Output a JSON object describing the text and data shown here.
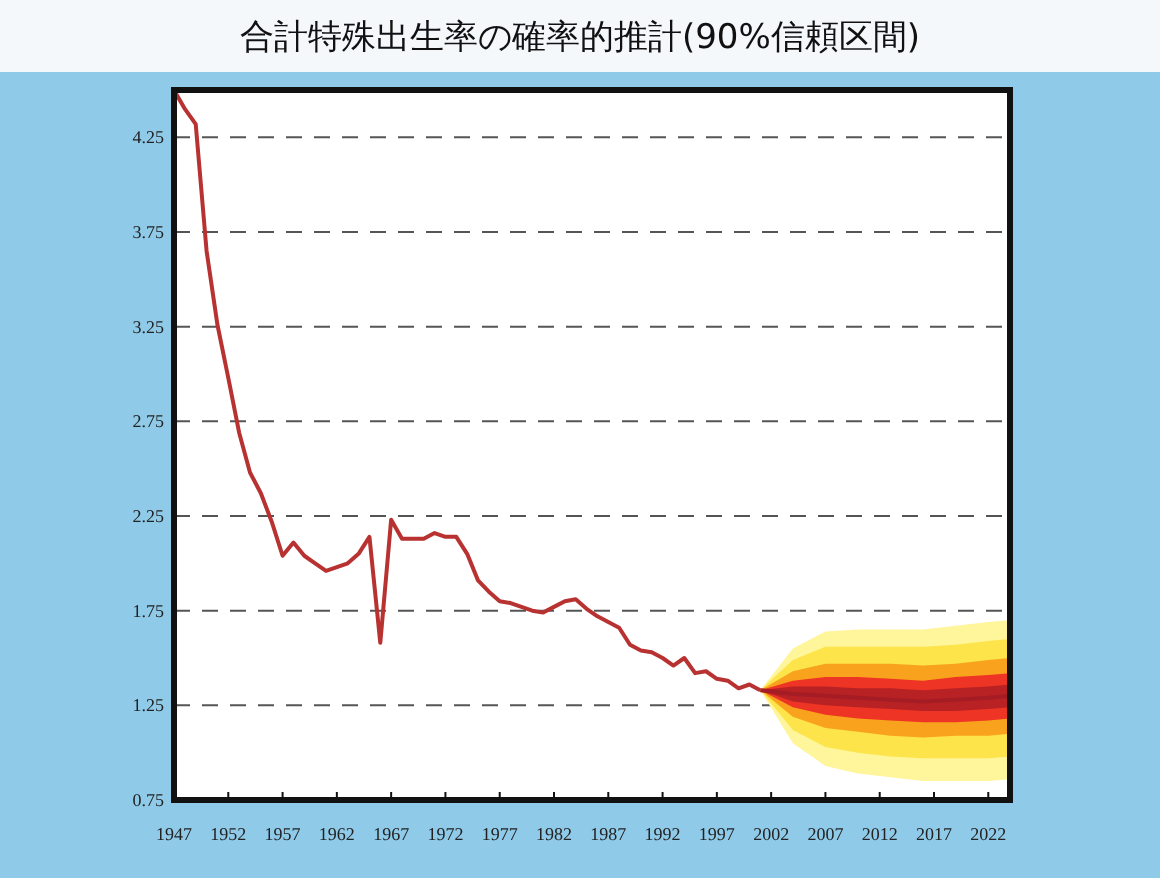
{
  "chart_data": {
    "type": "line",
    "title": "合計特殊出生率の確率的推計(90%信頼区間)",
    "xlim": [
      1947,
      2024
    ],
    "xticks": [
      1947,
      1952,
      1957,
      1962,
      1967,
      1972,
      1977,
      1982,
      1987,
      1992,
      1997,
      2002,
      2007,
      2012,
      2017,
      2022
    ],
    "ylim": [
      0.75,
      4.5
    ],
    "yticks": [
      0.75,
      1.25,
      1.75,
      2.25,
      2.75,
      3.25,
      3.75,
      4.25
    ],
    "grid": "y",
    "marker": "none",
    "line_style": "solid",
    "series": [
      {
        "color": "#fff59a",
        "x": [
          2001,
          2004,
          2007,
          2010,
          2013,
          2016,
          2019,
          2022,
          2024
        ],
        "values": [
          null,
          null,
          null,
          null,
          null,
          null,
          null,
          null,
          null
        ],
        "upper": [
          1.33,
          1.55,
          1.64,
          1.65,
          1.65,
          1.65,
          1.67,
          1.69,
          1.7
        ],
        "lower": [
          1.33,
          1.05,
          0.93,
          0.89,
          0.87,
          0.85,
          0.85,
          0.85,
          0.86
        ]
      },
      {
        "color": "#fde44a",
        "x": [
          2001,
          2004,
          2007,
          2010,
          2013,
          2016,
          2019,
          2022,
          2024
        ],
        "values": [
          null,
          null,
          null,
          null,
          null,
          null,
          null,
          null,
          null
        ],
        "upper": [
          1.33,
          1.49,
          1.56,
          1.56,
          1.56,
          1.56,
          1.57,
          1.59,
          1.6
        ],
        "lower": [
          1.33,
          1.12,
          1.03,
          1.0,
          0.98,
          0.97,
          0.97,
          0.97,
          0.98
        ]
      },
      {
        "color": "#f9a21e",
        "x": [
          2001,
          2004,
          2007,
          2010,
          2013,
          2016,
          2019,
          2022,
          2024
        ],
        "values": [
          null,
          null,
          null,
          null,
          null,
          null,
          null,
          null,
          null
        ],
        "upper": [
          1.33,
          1.43,
          1.47,
          1.47,
          1.47,
          1.46,
          1.47,
          1.49,
          1.5
        ],
        "lower": [
          1.33,
          1.19,
          1.13,
          1.11,
          1.09,
          1.08,
          1.09,
          1.09,
          1.1
        ]
      },
      {
        "color": "#ee3424",
        "x": [
          2001,
          2004,
          2007,
          2010,
          2013,
          2016,
          2019,
          2022,
          2024
        ],
        "values": [
          null,
          null,
          null,
          null,
          null,
          null,
          null,
          null,
          null
        ],
        "upper": [
          1.33,
          1.38,
          1.4,
          1.4,
          1.39,
          1.38,
          1.4,
          1.41,
          1.42
        ],
        "lower": [
          1.33,
          1.24,
          1.2,
          1.18,
          1.17,
          1.16,
          1.16,
          1.17,
          1.18
        ]
      },
      {
        "color": "#a51c24",
        "x": [
          2001,
          2004,
          2007,
          2010,
          2013,
          2016,
          2019,
          2022,
          2024
        ],
        "values": [
          1.33,
          1.31,
          1.3,
          1.29,
          1.28,
          1.27,
          1.28,
          1.29,
          1.3
        ],
        "upper": [
          1.33,
          1.35,
          1.35,
          1.34,
          1.34,
          1.33,
          1.34,
          1.35,
          1.36
        ],
        "lower": [
          1.33,
          1.27,
          1.25,
          1.24,
          1.23,
          1.22,
          1.22,
          1.23,
          1.24
        ]
      },
      {
        "color": "#b83232",
        "x": [
          1947,
          1948,
          1949,
          1950,
          1951,
          1952,
          1953,
          1954,
          1955,
          1956,
          1957,
          1958,
          1959,
          1960,
          1961,
          1962,
          1963,
          1964,
          1965,
          1966,
          1967,
          1968,
          1969,
          1970,
          1971,
          1972,
          1973,
          1974,
          1975,
          1976,
          1977,
          1978,
          1979,
          1980,
          1981,
          1982,
          1983,
          1984,
          1985,
          1986,
          1987,
          1988,
          1989,
          1990,
          1991,
          1992,
          1993,
          1994,
          1995,
          1996,
          1997,
          1998,
          1999,
          2000,
          2001
        ],
        "values": [
          4.5,
          4.4,
          4.32,
          3.65,
          3.26,
          2.98,
          2.69,
          2.48,
          2.37,
          2.22,
          2.04,
          2.11,
          2.04,
          2.0,
          1.96,
          1.98,
          2.0,
          2.05,
          2.14,
          1.58,
          2.23,
          2.13,
          2.13,
          2.13,
          2.16,
          2.14,
          2.14,
          2.05,
          1.91,
          1.85,
          1.8,
          1.79,
          1.77,
          1.75,
          1.74,
          1.77,
          1.8,
          1.81,
          1.76,
          1.72,
          1.69,
          1.66,
          1.57,
          1.54,
          1.53,
          1.5,
          1.46,
          1.5,
          1.42,
          1.43,
          1.39,
          1.38,
          1.34,
          1.36,
          1.33
        ]
      }
    ]
  }
}
